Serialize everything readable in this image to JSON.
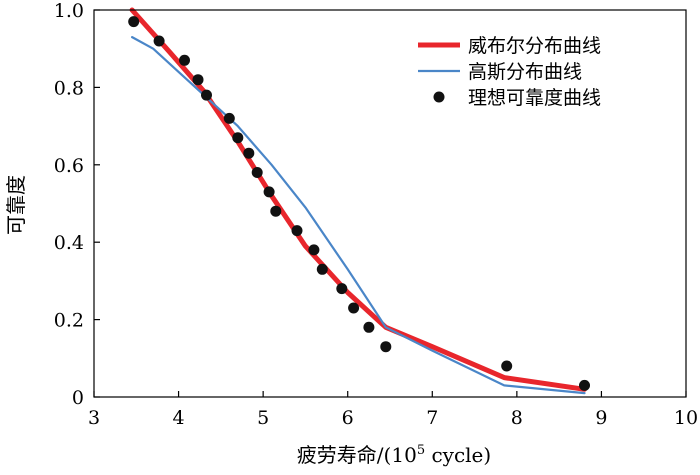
{
  "chart_data": {
    "type": "line",
    "title": "",
    "xlabel": "疲劳寿命/(10",
    "xlabel_sup": "5",
    "xlabel_tail": " cycle)",
    "ylabel": "可靠度",
    "xlim": [
      3,
      10
    ],
    "ylim": [
      0,
      1.0
    ],
    "xticks": [
      3,
      4,
      5,
      6,
      7,
      8,
      9,
      10
    ],
    "yticks": [
      0,
      0.2,
      0.4,
      0.6,
      0.8,
      1.0
    ],
    "xtick_labels": [
      "3",
      "4",
      "5",
      "6",
      "7",
      "8",
      "9",
      "10"
    ],
    "ytick_labels": [
      "0",
      "0.2",
      "0.4",
      "0.6",
      "0.8",
      "1.0"
    ],
    "grid": false,
    "legend_position": "top-right",
    "series": [
      {
        "name": "威布尔分布曲线",
        "kind": "line",
        "color": "#e8262c",
        "x": [
          3.45,
          3.9,
          4.3,
          4.7,
          5.1,
          5.5,
          6.0,
          6.45,
          7.0,
          7.85,
          8.8
        ],
        "y": [
          1.0,
          0.89,
          0.79,
          0.66,
          0.52,
          0.39,
          0.27,
          0.18,
          0.13,
          0.05,
          0.02
        ]
      },
      {
        "name": "高斯分布曲线",
        "kind": "line",
        "color": "#4a86c8",
        "x": [
          3.45,
          3.7,
          4.0,
          4.3,
          4.7,
          5.1,
          5.5,
          6.0,
          6.45,
          7.0,
          7.85,
          8.8
        ],
        "y": [
          0.93,
          0.9,
          0.84,
          0.78,
          0.7,
          0.6,
          0.49,
          0.33,
          0.18,
          0.12,
          0.03,
          0.01
        ]
      },
      {
        "name": "理想可靠度曲线",
        "kind": "scatter",
        "color": "#111111",
        "x": [
          3.47,
          3.77,
          4.07,
          4.23,
          4.33,
          4.6,
          4.7,
          4.83,
          4.93,
          5.07,
          5.15,
          5.4,
          5.6,
          5.7,
          5.93,
          6.07,
          6.25,
          6.45,
          7.88,
          8.8
        ],
        "y": [
          0.97,
          0.92,
          0.87,
          0.82,
          0.78,
          0.72,
          0.67,
          0.63,
          0.58,
          0.53,
          0.48,
          0.43,
          0.38,
          0.33,
          0.28,
          0.23,
          0.18,
          0.13,
          0.08,
          0.03
        ]
      }
    ]
  }
}
